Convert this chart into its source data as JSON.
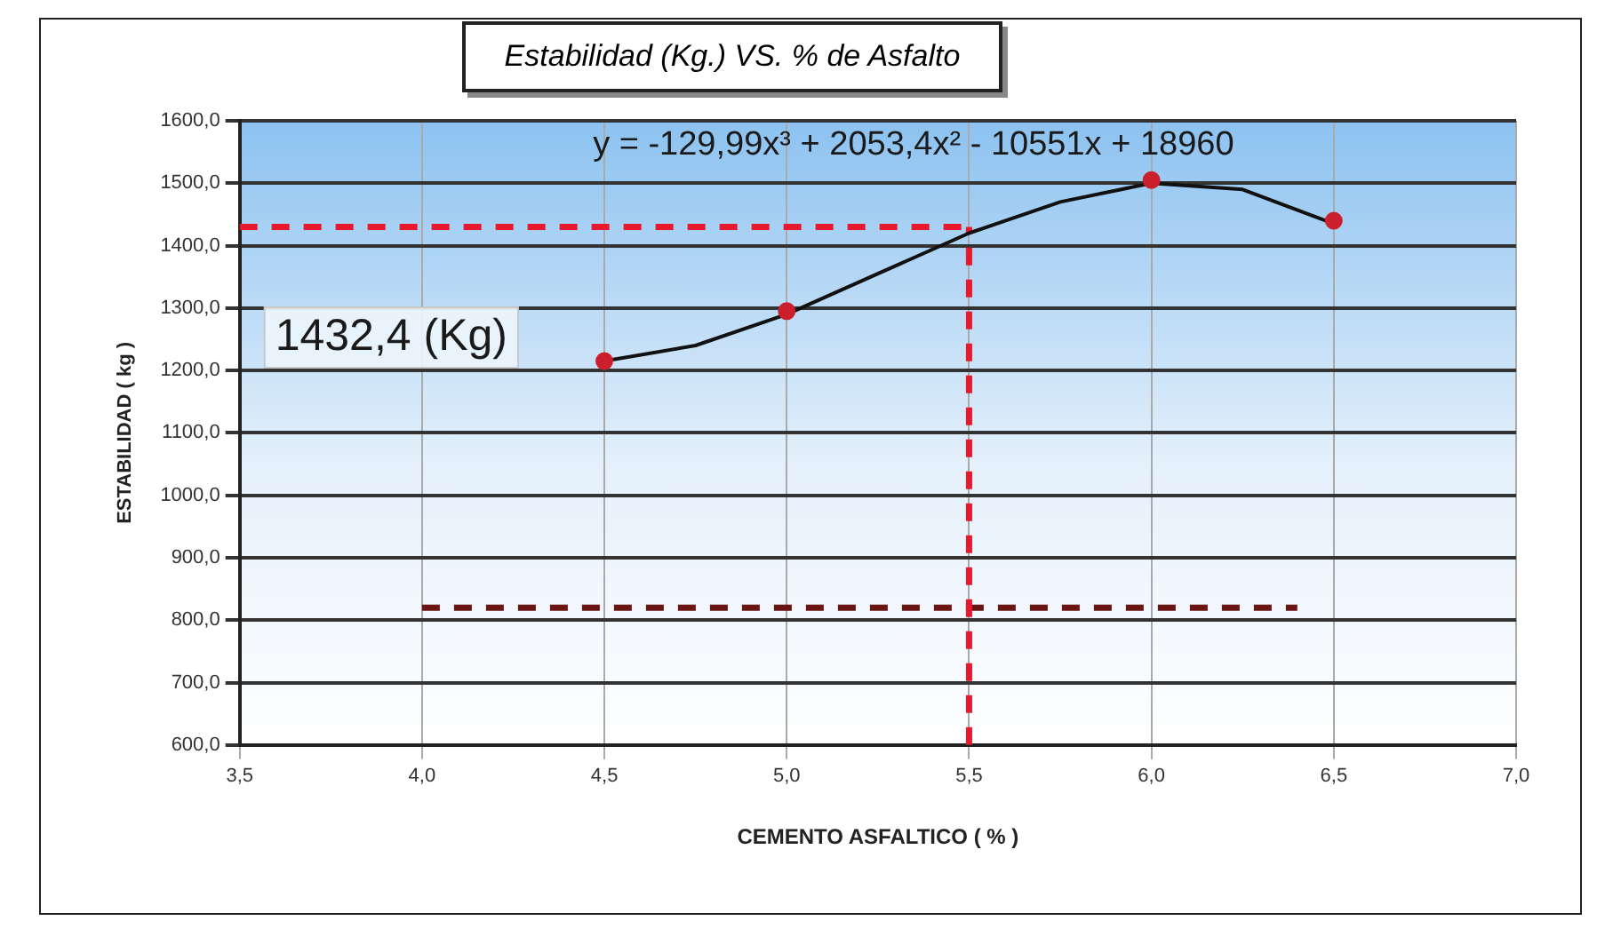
{
  "chart_data": {
    "type": "scatter",
    "title": "Estabilidad (Kg.)  VS.  % de Asfalto",
    "xlabel": "CEMENTO ASFALTICO ( % )",
    "ylabel": "ESTABILIDAD ( kg )",
    "annotations": [
      "y = -129,99x³ + 2053,4x² - 10551x + 18960",
      "1432,4 (Kg)"
    ],
    "series": [
      {
        "type": "scatter",
        "color": "#cc1f2e",
        "marker": "circle",
        "x": [
          4.5,
          5.0,
          6.0,
          6.5
        ],
        "values": [
          1215,
          1295,
          1505,
          1440
        ]
      },
      {
        "type": "line",
        "color": "#111111",
        "marker": "none",
        "line_style": "solid",
        "x": [
          4.5,
          4.75,
          5.0,
          5.25,
          5.5,
          5.75,
          6.0,
          6.25,
          6.5
        ],
        "values": [
          1215,
          1240,
          1290,
          1355,
          1420,
          1470,
          1500,
          1490,
          1435
        ]
      },
      {
        "type": "line",
        "color": "#e8192c",
        "marker": "none",
        "line_style": "dashed",
        "x": [
          3.5,
          5.5
        ],
        "values": [
          1430,
          1430
        ]
      },
      {
        "type": "line",
        "color": "#e8192c",
        "marker": "none",
        "line_style": "dashed",
        "x": [
          5.5,
          5.5
        ],
        "values": [
          600,
          1430
        ]
      },
      {
        "type": "line",
        "color": "#6b1414",
        "marker": "none",
        "line_style": "dashed",
        "x": [
          4.0,
          6.4
        ],
        "values": [
          820,
          820
        ]
      }
    ],
    "xlim": [
      3.5,
      7.0
    ],
    "xticks": [
      {
        "value": 3.5,
        "label": "3,5"
      },
      {
        "value": 4.0,
        "label": "4,0"
      },
      {
        "value": 4.5,
        "label": "4,5"
      },
      {
        "value": 5.0,
        "label": "5,0"
      },
      {
        "value": 5.5,
        "label": "5,5"
      },
      {
        "value": 6.0,
        "label": "6,0"
      },
      {
        "value": 6.5,
        "label": "6,5"
      },
      {
        "value": 7.0,
        "label": "7,0"
      }
    ],
    "ylim": [
      600,
      1600
    ],
    "yticks": [
      {
        "value": 600,
        "label": "600,0"
      },
      {
        "value": 700,
        "label": "700,0"
      },
      {
        "value": 800,
        "label": "800,0"
      },
      {
        "value": 900,
        "label": "900,0"
      },
      {
        "value": 1000,
        "label": "1000,0"
      },
      {
        "value": 1100,
        "label": "1100,0"
      },
      {
        "value": 1200,
        "label": "1200,0"
      },
      {
        "value": 1300,
        "label": "1300,0"
      },
      {
        "value": 1400,
        "label": "1400,0"
      },
      {
        "value": 1500,
        "label": "1500,0"
      },
      {
        "value": 1600,
        "label": "1600,0"
      }
    ],
    "grid": true,
    "legend": false
  }
}
